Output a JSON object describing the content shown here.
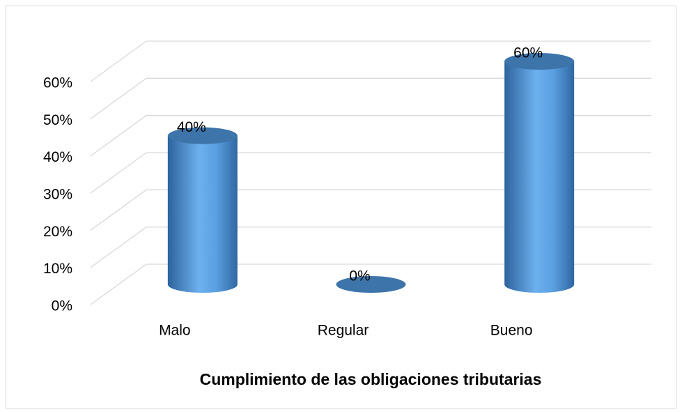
{
  "chart_data": {
    "type": "bar3d",
    "x_label": "Cumplimiento de las obligaciones tributarias",
    "categories": [
      "Malo",
      "Regular",
      "Bueno"
    ],
    "values": [
      40,
      0,
      60
    ],
    "value_labels": [
      "40%",
      "0%",
      "60%"
    ],
    "color": "#4a8fd4",
    "ylim": [
      0,
      60
    ],
    "yticks": [
      {
        "value": 0,
        "label": "0%"
      },
      {
        "value": 10,
        "label": "10%"
      },
      {
        "value": 20,
        "label": "20%"
      },
      {
        "value": 30,
        "label": "30%"
      },
      {
        "value": 40,
        "label": "40%"
      },
      {
        "value": 50,
        "label": "50%"
      },
      {
        "value": 60,
        "label": "60%"
      }
    ],
    "grid": true
  }
}
